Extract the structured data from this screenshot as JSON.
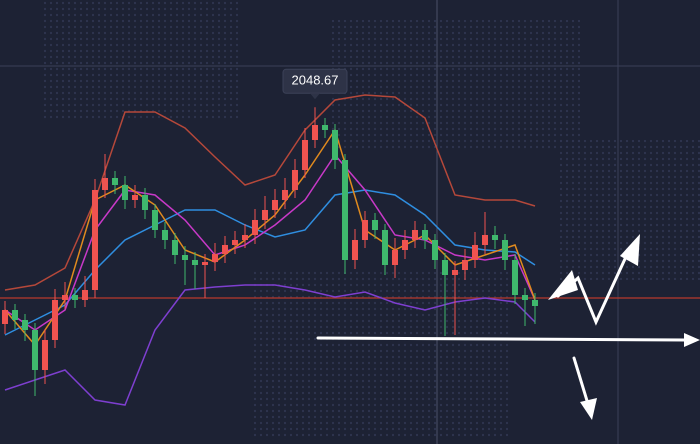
{
  "chart_data": {
    "type": "candlestick",
    "ylim": [
      2015,
      2059.4
    ],
    "up_color": "#ef5350",
    "down_color": "#3fb86d",
    "open": [
      2027.0,
      2028.4,
      2027.4,
      2026.4,
      2022.4,
      2025.4,
      2029.4,
      2029.9,
      2029.4,
      2030.4,
      2040.4,
      2041.6,
      2040.9,
      2039.4,
      2039.9,
      2038.4,
      2036.4,
      2035.4,
      2033.9,
      2033.4,
      2032.9,
      2033.2,
      2034.0,
      2034.9,
      2035.4,
      2035.9,
      2037.4,
      2038.4,
      2039.4,
      2040.4,
      2042.4,
      2045.4,
      2046.9,
      2046.4,
      2043.4,
      2033.4,
      2035.4,
      2037.4,
      2036.4,
      2032.9,
      2034.4,
      2035.4,
      2036.4,
      2035.4,
      2033.4,
      2031.9,
      2032.4,
      2033.4,
      2034.9,
      2035.9,
      2035.4,
      2033.4,
      2029.9,
      2029.4
    ],
    "high": [
      2029.3,
      2029.0,
      2028.0,
      2027.1,
      2026.5,
      2030.5,
      2031.2,
      2030.6,
      2031.8,
      2041.5,
      2044.0,
      2042.3,
      2041.8,
      2040.9,
      2040.6,
      2039.0,
      2037.2,
      2036.1,
      2034.8,
      2034.2,
      2034.0,
      2035.1,
      2035.8,
      2036.3,
      2037.0,
      2038.5,
      2039.8,
      2040.5,
      2041.6,
      2043.5,
      2046.6,
      2048.67,
      2047.6,
      2047.0,
      2044.0,
      2036.5,
      2038.3,
      2038.1,
      2037.0,
      2035.6,
      2036.4,
      2037.3,
      2037.0,
      2036.0,
      2034.1,
      2033.3,
      2034.5,
      2036.2,
      2038.2,
      2036.8,
      2036.0,
      2034.0,
      2030.6,
      2030.1
    ],
    "low": [
      2026.0,
      2026.5,
      2025.3,
      2019.8,
      2021.0,
      2024.6,
      2028.5,
      2028.6,
      2028.7,
      2029.6,
      2039.6,
      2040.0,
      2038.5,
      2038.6,
      2037.5,
      2035.6,
      2034.5,
      2033.0,
      2030.9,
      2030.5,
      2029.6,
      2032.3,
      2033.1,
      2034.0,
      2034.6,
      2035.0,
      2036.5,
      2037.6,
      2038.5,
      2039.6,
      2041.6,
      2044.6,
      2045.6,
      2042.5,
      2032.0,
      2032.5,
      2034.6,
      2035.5,
      2031.9,
      2031.6,
      2033.5,
      2034.6,
      2034.5,
      2032.5,
      2025.8,
      2025.9,
      2031.4,
      2032.6,
      2034.0,
      2034.5,
      2032.4,
      2029.0,
      2026.8,
      2027.0
    ],
    "close": [
      2028.4,
      2027.4,
      2026.4,
      2022.4,
      2025.4,
      2029.4,
      2029.9,
      2029.4,
      2030.4,
      2040.4,
      2041.6,
      2040.9,
      2039.4,
      2039.9,
      2038.4,
      2036.4,
      2035.4,
      2033.9,
      2033.4,
      2032.9,
      2033.2,
      2034.0,
      2034.9,
      2035.4,
      2035.9,
      2037.4,
      2038.4,
      2039.4,
      2040.4,
      2042.4,
      2045.4,
      2046.9,
      2046.4,
      2043.4,
      2033.4,
      2035.4,
      2037.4,
      2036.4,
      2032.9,
      2034.4,
      2035.4,
      2036.4,
      2035.4,
      2033.4,
      2031.9,
      2032.4,
      2033.4,
      2034.9,
      2035.9,
      2035.4,
      2033.4,
      2029.9,
      2029.4,
      2028.8
    ],
    "peak_index": 31,
    "line_x": [
      0,
      3,
      6,
      9,
      12,
      15,
      18,
      21,
      24,
      27,
      30,
      33,
      36,
      39,
      42,
      45,
      48,
      51,
      53
    ],
    "lines": [
      {
        "color": "#b5483a",
        "values": [
          2030.4,
          2030.9,
          2032.6,
          2039.4,
          2048.2,
          2048.2,
          2046.6,
          2043.7,
          2040.9,
          2041.9,
          2046.4,
          2049.4,
          2049.9,
          2049.7,
          2047.6,
          2039.9,
          2039.4,
          2039.4,
          2038.8
        ]
      },
      {
        "color": "#7e3fd0",
        "values": [
          2020.4,
          2021.4,
          2022.4,
          2019.4,
          2018.9,
          2026.4,
          2030.4,
          2030.7,
          2030.9,
          2030.9,
          2030.4,
          2029.7,
          2030.2,
          2029.1,
          2028.4,
          2029.2,
          2029.6,
          2029.2,
          2027.2
        ]
      },
      {
        "color": "#2f8ee0",
        "values": [
          2025.9,
          2027.4,
          2028.9,
          2032.4,
          2035.4,
          2036.9,
          2038.4,
          2038.4,
          2036.9,
          2035.7,
          2036.4,
          2039.9,
          2040.4,
          2039.9,
          2037.9,
          2034.9,
          2034.4,
          2034.2,
          2032.9
        ]
      },
      {
        "color": "#c839c8",
        "values": [
          2028.4,
          2026.4,
          2028.4,
          2036.4,
          2040.4,
          2039.9,
          2037.4,
          2033.9,
          2034.9,
          2036.9,
          2039.4,
          2043.9,
          2040.4,
          2035.9,
          2035.4,
          2033.9,
          2033.4,
          2033.9,
          2029.4
        ]
      },
      {
        "color": "#e08a1e",
        "values": [
          2028.4,
          2024.9,
          2029.4,
          2039.4,
          2040.9,
          2038.9,
          2034.4,
          2033.2,
          2035.4,
          2037.9,
          2041.9,
          2046.4,
          2036.4,
          2034.4,
          2035.9,
          2032.9,
          2033.9,
          2034.9,
          2029.4
        ]
      }
    ],
    "price_lines": [
      {
        "value": 2029.6,
        "color": "#b8392c"
      }
    ]
  }
}
